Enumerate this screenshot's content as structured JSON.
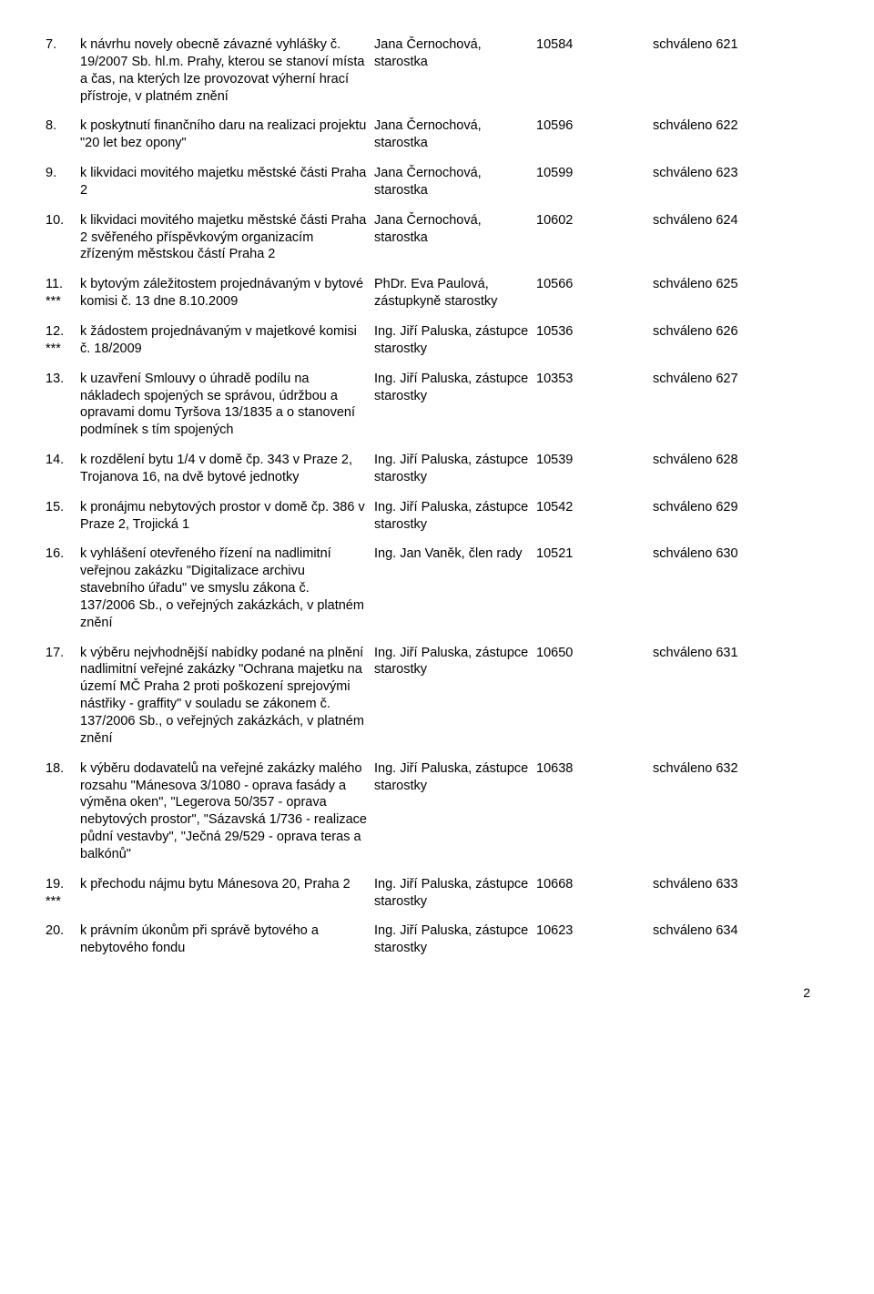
{
  "rows": [
    {
      "num": "7.",
      "stars": "",
      "desc": "k návrhu novely obecně závazné vyhlášky č. 19/2007 Sb. hl.m. Prahy, kterou se stanoví místa a čas, na kterých lze provozovat výherní hrací přístroje, v platném znění",
      "person": "Jana Černochová, starostka",
      "code": "10584",
      "status": "schváleno 621"
    },
    {
      "num": "8.",
      "stars": "",
      "desc": "k poskytnutí finančního daru na realizaci projektu \"20 let bez opony\"",
      "person": "Jana Černochová, starostka",
      "code": "10596",
      "status": "schváleno 622"
    },
    {
      "num": "9.",
      "stars": "",
      "desc": "k likvidaci movitého majetku městské části Praha 2",
      "person": "Jana Černochová, starostka",
      "code": "10599",
      "status": "schváleno 623"
    },
    {
      "num": "10.",
      "stars": "",
      "desc": "k likvidaci movitého majetku městské části Praha 2 svěřeného příspěvkovým organizacím zřízeným městskou částí Praha 2",
      "person": "Jana Černochová, starostka",
      "code": "10602",
      "status": "schváleno 624"
    },
    {
      "num": "11.",
      "stars": "***",
      "desc": "k bytovým záležitostem projednávaným v bytové komisi č. 13 dne 8.10.2009",
      "person": "PhDr. Eva Paulová, zástupkyně starostky",
      "code": "10566",
      "status": "schváleno 625"
    },
    {
      "num": "12.",
      "stars": "***",
      "desc": "k žádostem projednávaným v majetkové komisi č. 18/2009",
      "person": "Ing. Jiří Paluska, zástupce starostky",
      "code": "10536",
      "status": "schváleno 626"
    },
    {
      "num": "13.",
      "stars": "",
      "desc": "k uzavření Smlouvy o úhradě podílu na nákladech spojených se správou, údržbou a opravami domu Tyršova 13/1835 a o stanovení podmínek s tím spojených",
      "person": "Ing. Jiří Paluska, zástupce starostky",
      "code": "10353",
      "status": "schváleno 627"
    },
    {
      "num": "14.",
      "stars": "",
      "desc": "k rozdělení bytu 1/4 v domě čp. 343 v Praze 2, Trojanova 16, na dvě bytové jednotky",
      "person": "Ing. Jiří Paluska, zástupce starostky",
      "code": "10539",
      "status": "schváleno 628"
    },
    {
      "num": "15.",
      "stars": "",
      "desc": "k pronájmu nebytových prostor v domě čp. 386 v Praze 2, Trojická 1",
      "person": "Ing. Jiří Paluska, zástupce starostky",
      "code": "10542",
      "status": "schváleno 629"
    },
    {
      "num": "16.",
      "stars": "",
      "desc": "k vyhlášení otevřeného řízení na nadlimitní veřejnou zakázku \"Digitalizace archivu stavebního úřadu\" ve smyslu zákona č. 137/2006 Sb., o veřejných zakázkách, v platném znění",
      "person": "Ing. Jan Vaněk, člen rady",
      "code": "10521",
      "status": "schváleno 630"
    },
    {
      "num": "17.",
      "stars": "",
      "desc": "k výběru nejvhodnější nabídky podané na plnění nadlimitní veřejné zakázky \"Ochrana majetku na území MČ Praha 2 proti poškození sprejovými nástřiky - graffity\" v souladu se zákonem č. 137/2006 Sb., o veřejných zakázkách, v platném znění",
      "person": "Ing. Jiří Paluska, zástupce starostky",
      "code": "10650",
      "status": "schváleno 631"
    },
    {
      "num": "18.",
      "stars": "",
      "desc": "k výběru dodavatelů na veřejné zakázky malého rozsahu \"Mánesova 3/1080 - oprava fasády a výměna oken\", \"Legerova 50/357 - oprava nebytových prostor\", \"Sázavská 1/736 - realizace půdní vestavby\", \"Ječná 29/529 - oprava teras a balkónů\"",
      "person": "Ing. Jiří Paluska, zástupce starostky",
      "code": "10638",
      "status": "schváleno 632"
    },
    {
      "num": "19.",
      "stars": "***",
      "desc": "k přechodu nájmu bytu Mánesova 20, Praha 2",
      "person": "Ing. Jiří Paluska, zástupce starostky",
      "code": "10668",
      "status": "schváleno 633"
    },
    {
      "num": "20.",
      "stars": "",
      "desc": "k právním úkonům při správě bytového a nebytového fondu",
      "person": "Ing. Jiří Paluska, zástupce starostky",
      "code": "10623",
      "status": "schváleno 634"
    }
  ],
  "pageNumber": "2"
}
